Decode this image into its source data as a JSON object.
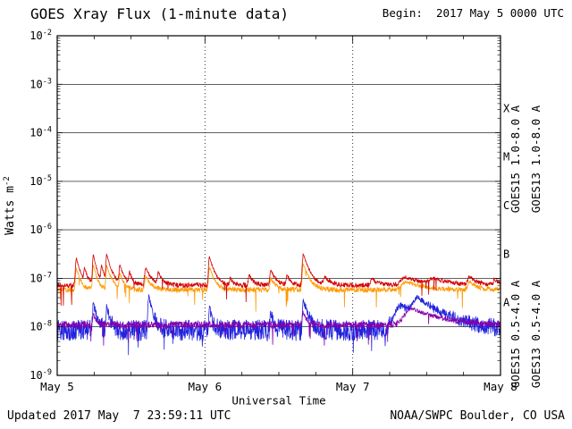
{
  "header": {
    "begin_label": "Begin:  2017 May 5 0000 UTC"
  },
  "footer": {
    "updated": "Updated 2017 May  7 23:59:11 UTC",
    "source": "NOAA/SWPC Boulder, CO USA"
  },
  "chart_data": {
    "type": "line",
    "title": "GOES Xray Flux (1-minute data)",
    "xlabel": "Universal Time",
    "ylabel": "Watts m^-2",
    "ylabel_base": "Watts m",
    "ylabel_exponent": "-2",
    "x_ticks": [
      "May 5",
      "May 6",
      "May 7",
      "May 8"
    ],
    "x_range_days": [
      0,
      3
    ],
    "y_log_range": [
      -2,
      -9
    ],
    "y_tick_labels": [
      "10^-2",
      "10^-3",
      "10^-4",
      "10^-5",
      "10^-6",
      "10^-7",
      "10^-8",
      "10^-9"
    ],
    "y_tick_exponents": [
      -2,
      -3,
      -4,
      -5,
      -6,
      -7,
      -8,
      -9
    ],
    "flare_class_labels": [
      "X",
      "M",
      "C",
      "B",
      "A"
    ],
    "grid": {
      "h_decades": [
        -3,
        -4,
        -5,
        -6,
        -7,
        -8
      ],
      "v_days": [
        1,
        2
      ]
    },
    "legend_position": "right",
    "series": [
      {
        "name": "GOES15 1.0-8.0 A",
        "color": "#d40000",
        "baseline": 7.2e-08,
        "noise_log10": 0.05,
        "events": [
          [
            0.13,
            2.6e-07,
            0.008,
            0.025
          ],
          [
            0.185,
            1.5e-07,
            0.006,
            0.02
          ],
          [
            0.245,
            3e-07,
            0.007,
            0.022
          ],
          [
            0.3,
            1.7e-07,
            0.006,
            0.02
          ],
          [
            0.335,
            2.9e-07,
            0.006,
            0.03
          ],
          [
            0.425,
            1.8e-07,
            0.007,
            0.025
          ],
          [
            0.49,
            1.3e-07,
            0.006,
            0.02
          ],
          [
            0.6,
            1.6e-07,
            0.01,
            0.035
          ],
          [
            0.685,
            1.3e-07,
            0.008,
            0.025
          ],
          [
            1.03,
            2.8e-07,
            0.007,
            0.03
          ],
          [
            1.17,
            1e-07,
            0.006,
            0.02
          ],
          [
            1.3,
            1.2e-07,
            0.007,
            0.025
          ],
          [
            1.445,
            1.5e-07,
            0.007,
            0.03
          ],
          [
            1.555,
            1.2e-07,
            0.006,
            0.02
          ],
          [
            1.665,
            3.2e-07,
            0.008,
            0.035
          ],
          [
            1.81,
            1.05e-07,
            0.01,
            0.04
          ],
          [
            2.13,
            9.5e-08,
            0.012,
            0.05
          ],
          [
            2.36,
            1.05e-07,
            0.04,
            0.12
          ],
          [
            2.55,
            9.5e-08,
            0.04,
            0.1
          ],
          [
            2.79,
            1.05e-07,
            0.015,
            0.05
          ],
          [
            2.96,
            9.5e-08,
            0.01,
            0.04
          ]
        ]
      },
      {
        "name": "GOES13 1.0-8.0 A",
        "color": "#ff9900",
        "baseline": 5.8e-08,
        "noise_log10": 0.055,
        "events": [
          [
            0.13,
            1.6e-07,
            0.008,
            0.025
          ],
          [
            0.245,
            1.9e-07,
            0.007,
            0.022
          ],
          [
            0.335,
            1.8e-07,
            0.006,
            0.03
          ],
          [
            0.425,
            1.2e-07,
            0.007,
            0.025
          ],
          [
            0.6,
            1.1e-07,
            0.01,
            0.035
          ],
          [
            1.03,
            1.7e-07,
            0.007,
            0.03
          ],
          [
            1.445,
            1e-07,
            0.007,
            0.03
          ],
          [
            1.665,
            2e-07,
            0.008,
            0.035
          ],
          [
            2.36,
            8.5e-08,
            0.04,
            0.12
          ],
          [
            2.79,
            8.5e-08,
            0.015,
            0.05
          ]
        ]
      },
      {
        "name": "GOES15 0.5-4.0 A",
        "color": "#2222dd",
        "baseline": 8.5e-09,
        "noise_log10": 0.22,
        "events": [
          [
            0.245,
            3.2e-08,
            0.006,
            0.02
          ],
          [
            0.335,
            2.6e-08,
            0.006,
            0.02
          ],
          [
            0.62,
            4.2e-08,
            0.007,
            0.025
          ],
          [
            1.03,
            2.4e-08,
            0.006,
            0.02
          ],
          [
            1.445,
            2e-08,
            0.006,
            0.02
          ],
          [
            1.665,
            3.6e-08,
            0.007,
            0.03
          ],
          [
            2.33,
            2.6e-08,
            0.06,
            0.18
          ],
          [
            2.44,
            3e-08,
            0.04,
            0.15
          ]
        ]
      },
      {
        "name": "GOES13 0.5-4.0 A",
        "color": "#8800aa",
        "baseline": 1.1e-08,
        "noise_log10": 0.07,
        "events": [
          [
            0.245,
            1.8e-08,
            0.006,
            0.02
          ],
          [
            1.665,
            2e-08,
            0.007,
            0.025
          ],
          [
            2.4,
            2.4e-08,
            0.06,
            0.18
          ]
        ]
      }
    ]
  }
}
